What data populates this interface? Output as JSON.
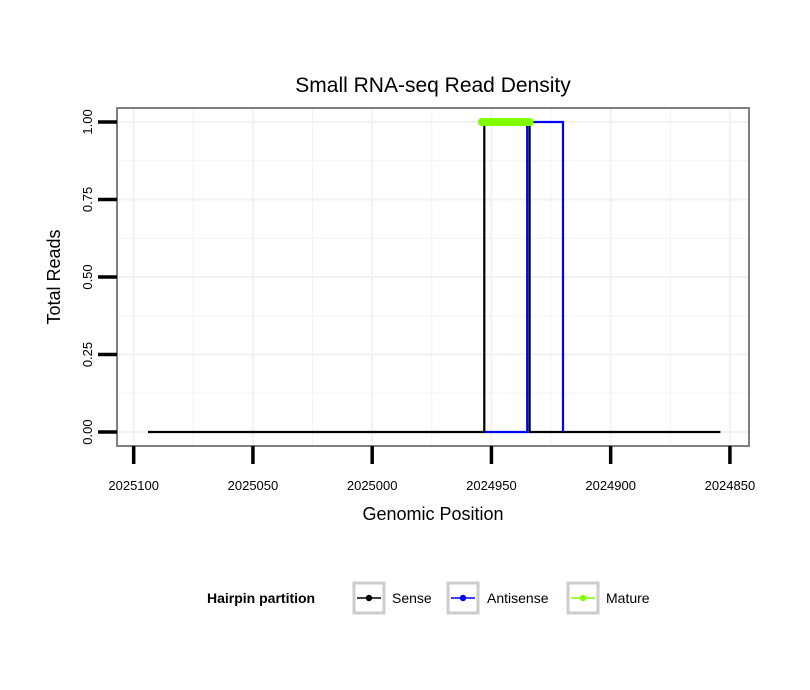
{
  "chart_data": {
    "type": "line",
    "title": "Small RNA-seq Read Density",
    "xlabel": "Genomic Position",
    "ylabel": "Total Reads",
    "x_reversed": true,
    "xlim": [
      2025107,
      2024842
    ],
    "ylim": [
      -0.045,
      1.045
    ],
    "x_ticks": [
      2025100,
      2025050,
      2025000,
      2024950,
      2024900,
      2024850
    ],
    "x_tick_labels": [
      "2025100",
      "2025050",
      "2025000",
      "2024950",
      "2024900",
      "2024850"
    ],
    "y_ticks": [
      0,
      0.25,
      0.5,
      0.75,
      1.0
    ],
    "y_tick_labels": [
      "0.00",
      "0.25",
      "0.50",
      "0.75",
      "1.00"
    ],
    "grid": true,
    "legend_position": "bottom",
    "legend_title": "Hairpin partition",
    "series": [
      {
        "name": "Sense",
        "color": "#000000",
        "x": [
          2025094,
          2024953,
          2024953,
          2024934,
          2024934,
          2024854
        ],
        "y": [
          0,
          0,
          1,
          1,
          0,
          0
        ]
      },
      {
        "name": "Antisense",
        "color": "#0000ff",
        "x": [
          2024953,
          2024935,
          2024935,
          2024920,
          2024920
        ],
        "y": [
          0,
          0,
          1,
          1,
          0
        ]
      },
      {
        "name": "Mature",
        "color": "#7fff00",
        "x": [
          2024954,
          2024934
        ],
        "y": [
          1,
          1
        ]
      }
    ]
  }
}
